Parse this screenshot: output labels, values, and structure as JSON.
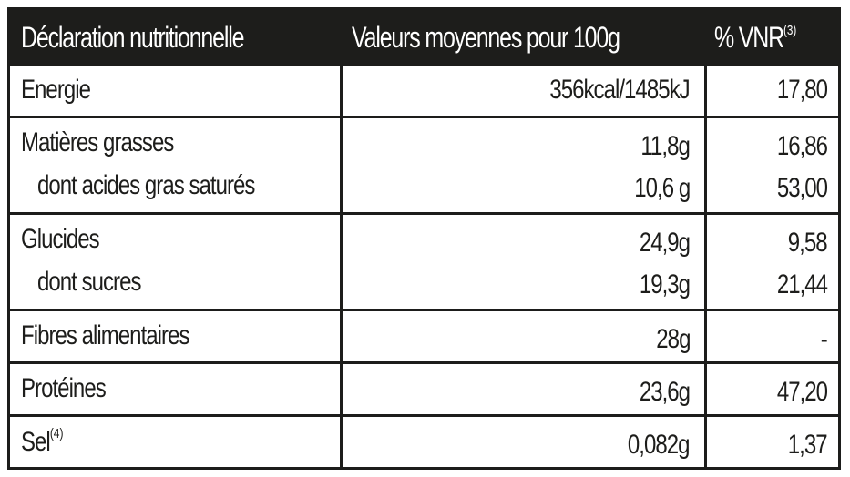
{
  "header": {
    "col1": "Déclaration nutritionnelle",
    "col2": "Valeurs moyennes pour 100g",
    "col3": "% VNR",
    "col3_sup": "(3)"
  },
  "rows": [
    {
      "label": "Energie",
      "value": "356kcal/1485kJ",
      "vnr": "17,80"
    },
    {
      "label": "Matières grasses",
      "value": "11,8g",
      "vnr": "16,86"
    },
    {
      "label": "dont acides gras saturés",
      "value": "10,6 g",
      "vnr": "53,00"
    },
    {
      "label": "Glucides",
      "value": "24,9g",
      "vnr": "9,58"
    },
    {
      "label": "dont sucres",
      "value": "19,3g",
      "vnr": "21,44"
    },
    {
      "label": "Fibres alimentaires",
      "value": "28g",
      "vnr": "-"
    },
    {
      "label": "Protéines",
      "value": "23,6g",
      "vnr": "47,20"
    },
    {
      "label": "Sel",
      "label_sup": "(4)",
      "value": "0,082g",
      "vnr": "1,37"
    }
  ]
}
